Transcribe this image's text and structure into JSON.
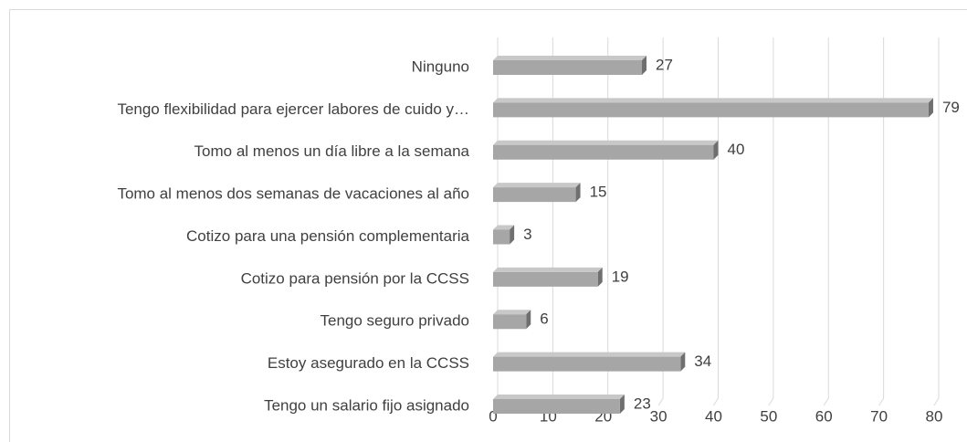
{
  "chart_data": {
    "type": "bar",
    "orientation": "horizontal",
    "categories": [
      "Ninguno",
      "Tengo flexibilidad para ejercer labores de cuido y…",
      "Tomo al menos un día libre a la semana",
      "Tomo al menos dos semanas de vacaciones al año",
      "Cotizo para una pensión complementaria",
      "Cotizo para pensión por la CCSS",
      "Tengo seguro privado",
      "Estoy asegurado en la CCSS",
      "Tengo un salario fijo asignado"
    ],
    "values": [
      27,
      79,
      40,
      15,
      3,
      19,
      6,
      34,
      23
    ],
    "color": "#a6a6a6",
    "xlim": [
      0,
      80
    ],
    "xticks": [
      0,
      10,
      20,
      30,
      40,
      50,
      60,
      70,
      80
    ],
    "grid": true
  }
}
